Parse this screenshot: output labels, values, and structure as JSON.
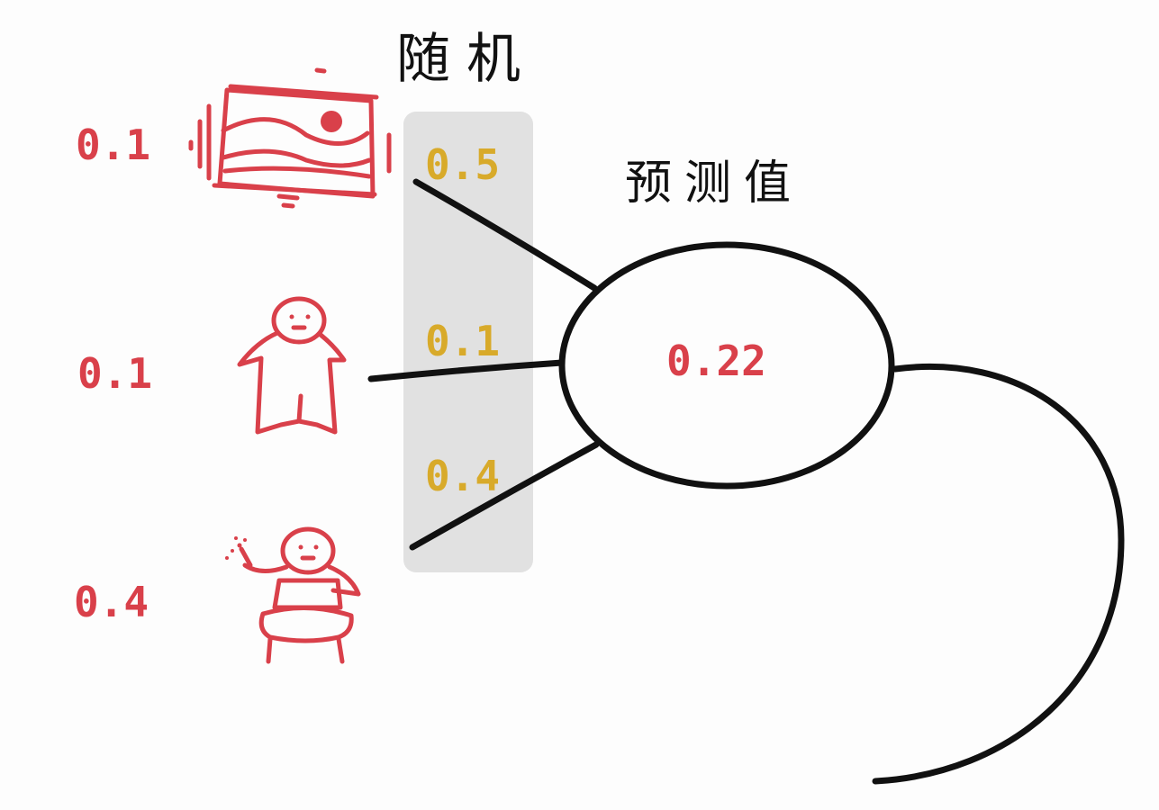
{
  "colors": {
    "input": "#d9404a",
    "weight": "#d8aa2a",
    "output": "#d9404a",
    "ink": "#111111",
    "band": "#dcdcdc"
  },
  "weights_title": "随机",
  "output_title": "预测值",
  "inputs": [
    {
      "icon": "landscape-picture-icon",
      "value": "0.1"
    },
    {
      "icon": "person-icon",
      "value": "0.1"
    },
    {
      "icon": "fairy-with-wand-icon",
      "value": "0.4"
    }
  ],
  "weights": [
    "0.5",
    "0.1",
    "0.4"
  ],
  "output_value": "0.22"
}
